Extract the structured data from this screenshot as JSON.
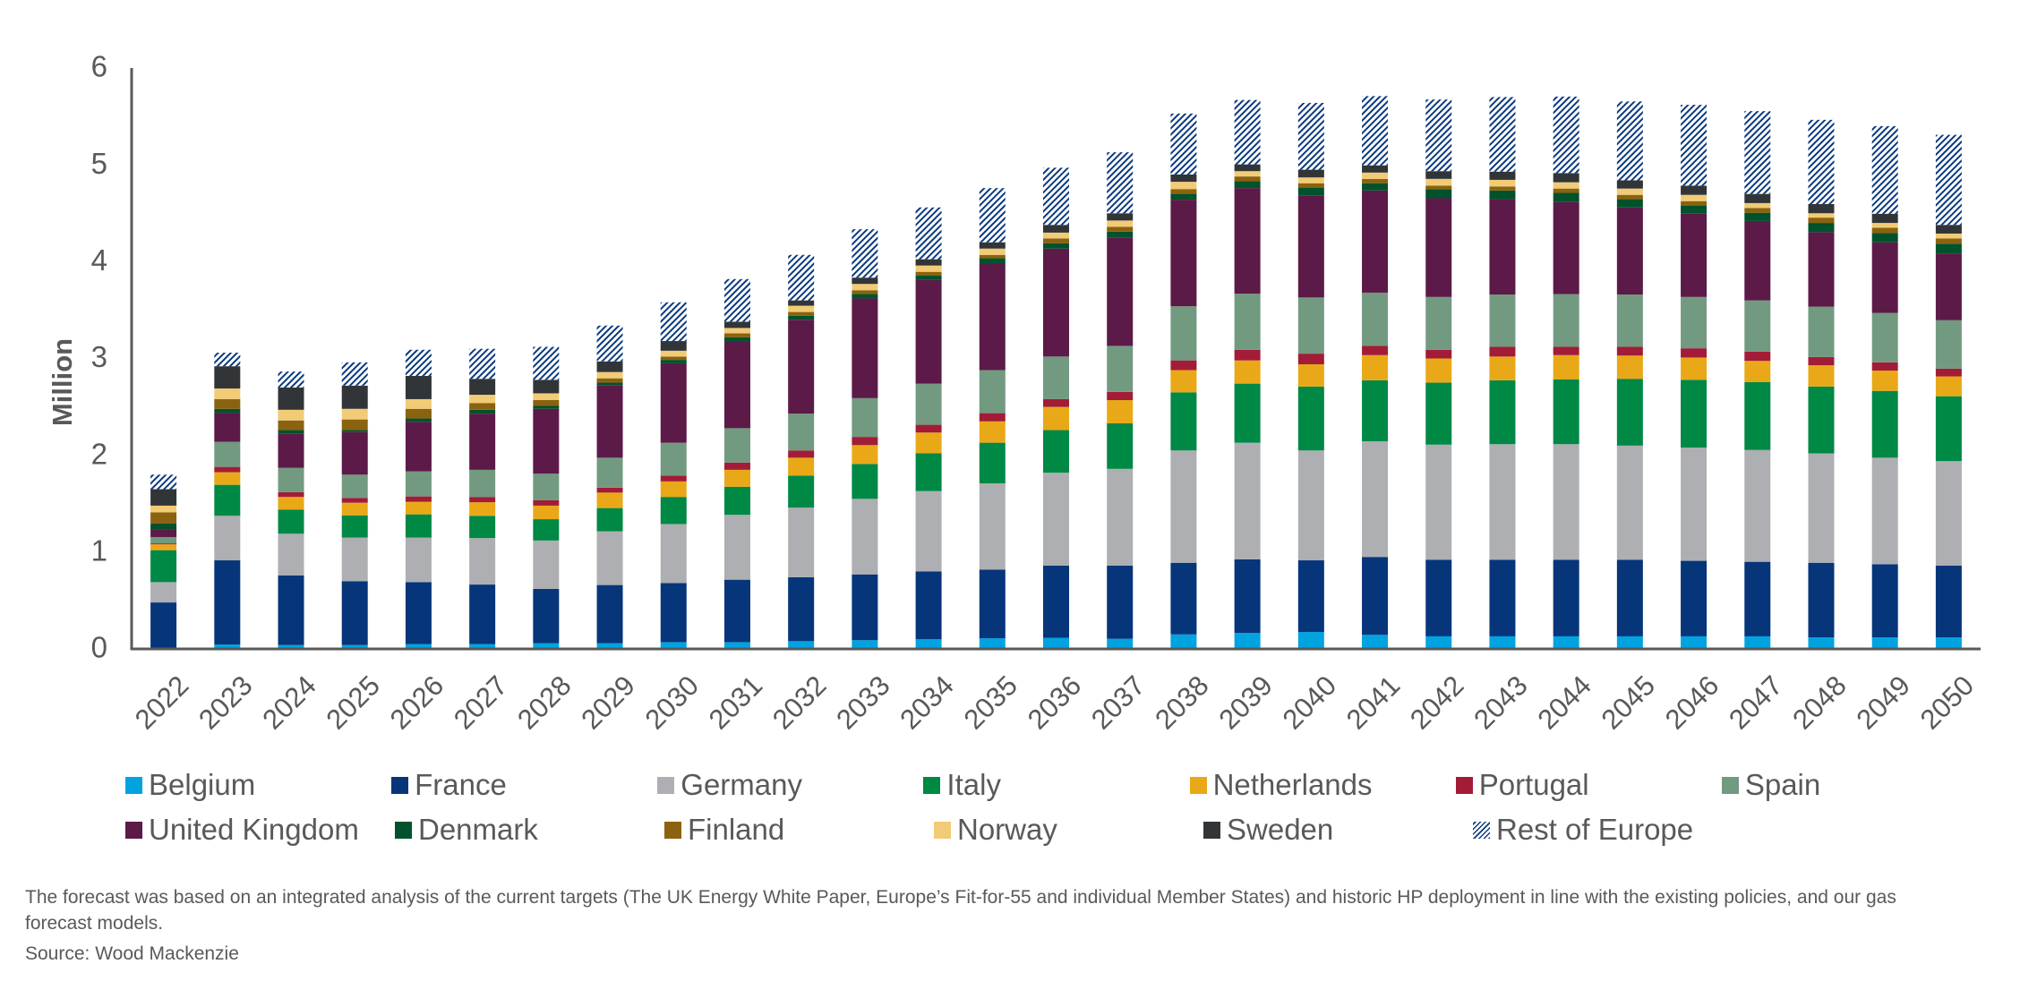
{
  "chart_data": {
    "type": "bar",
    "stacked": true,
    "title": "",
    "xlabel": "",
    "ylabel": "Million",
    "ylim": [
      0,
      6
    ],
    "yticks": [
      "0",
      "1",
      "2",
      "3",
      "4",
      "5",
      "6"
    ],
    "grid": false,
    "legend_position": "bottom",
    "categories": [
      "2022",
      "2023",
      "2024",
      "2025",
      "2026",
      "2027",
      "2028",
      "2029",
      "2030",
      "2031",
      "2032",
      "2033",
      "2034",
      "2035",
      "2036",
      "2037",
      "2038",
      "2039",
      "2040",
      "2041",
      "2042",
      "2043",
      "2044",
      "2045",
      "2046",
      "2047",
      "2048",
      "2049",
      "2050"
    ],
    "series": [
      {
        "name": "Belgium",
        "color": "#00A3E0",
        "pattern": "solid",
        "values": [
          0.01,
          0.045,
          0.04,
          0.04,
          0.05,
          0.05,
          0.06,
          0.06,
          0.07,
          0.07,
          0.08,
          0.09,
          0.1,
          0.11,
          0.115,
          0.105,
          0.15,
          0.165,
          0.175,
          0.145,
          0.13,
          0.13,
          0.13,
          0.13,
          0.13,
          0.13,
          0.12,
          0.12,
          0.12
        ]
      },
      {
        "name": "France",
        "color": "#06357A",
        "pattern": "solid",
        "values": [
          0.47,
          0.87,
          0.72,
          0.66,
          0.64,
          0.615,
          0.56,
          0.6,
          0.61,
          0.645,
          0.66,
          0.68,
          0.7,
          0.71,
          0.745,
          0.755,
          0.74,
          0.76,
          0.74,
          0.805,
          0.79,
          0.79,
          0.79,
          0.79,
          0.78,
          0.77,
          0.77,
          0.755,
          0.74
        ]
      },
      {
        "name": "Germany",
        "color": "#AEAFB2",
        "pattern": "solid",
        "values": [
          0.21,
          0.46,
          0.43,
          0.45,
          0.46,
          0.48,
          0.5,
          0.555,
          0.61,
          0.67,
          0.72,
          0.78,
          0.83,
          0.89,
          0.96,
          1.0,
          1.16,
          1.205,
          1.135,
          1.195,
          1.19,
          1.195,
          1.195,
          1.18,
          1.17,
          1.155,
          1.13,
          1.1,
          1.08
        ]
      },
      {
        "name": "Italy",
        "color": "#008845",
        "pattern": "solid",
        "values": [
          0.33,
          0.32,
          0.25,
          0.23,
          0.24,
          0.23,
          0.22,
          0.24,
          0.28,
          0.29,
          0.33,
          0.36,
          0.39,
          0.42,
          0.44,
          0.47,
          0.6,
          0.61,
          0.66,
          0.63,
          0.64,
          0.66,
          0.67,
          0.69,
          0.7,
          0.7,
          0.69,
          0.69,
          0.67
        ]
      },
      {
        "name": "Netherlands",
        "color": "#E9A817",
        "pattern": "solid",
        "values": [
          0.06,
          0.13,
          0.13,
          0.13,
          0.13,
          0.14,
          0.14,
          0.16,
          0.16,
          0.175,
          0.185,
          0.195,
          0.215,
          0.22,
          0.24,
          0.24,
          0.23,
          0.24,
          0.23,
          0.26,
          0.25,
          0.245,
          0.25,
          0.24,
          0.23,
          0.22,
          0.22,
          0.21,
          0.205
        ]
      },
      {
        "name": "Portugal",
        "color": "#A21C37",
        "pattern": "solid",
        "values": [
          0.01,
          0.055,
          0.05,
          0.05,
          0.055,
          0.055,
          0.055,
          0.05,
          0.06,
          0.075,
          0.075,
          0.085,
          0.08,
          0.085,
          0.08,
          0.085,
          0.1,
          0.11,
          0.11,
          0.095,
          0.09,
          0.1,
          0.085,
          0.09,
          0.095,
          0.095,
          0.085,
          0.085,
          0.08
        ]
      },
      {
        "name": "Spain",
        "color": "#729A80",
        "pattern": "solid",
        "values": [
          0.065,
          0.26,
          0.25,
          0.24,
          0.26,
          0.28,
          0.275,
          0.31,
          0.34,
          0.355,
          0.38,
          0.4,
          0.425,
          0.445,
          0.44,
          0.475,
          0.56,
          0.58,
          0.58,
          0.55,
          0.545,
          0.54,
          0.545,
          0.54,
          0.53,
          0.53,
          0.52,
          0.51,
          0.5
        ]
      },
      {
        "name": "United Kingdom",
        "color": "#5C1A48",
        "pattern": "solid",
        "values": [
          0.075,
          0.3,
          0.35,
          0.44,
          0.51,
          0.58,
          0.67,
          0.75,
          0.82,
          0.9,
          0.97,
          1.03,
          1.07,
          1.1,
          1.115,
          1.12,
          1.1,
          1.09,
          1.05,
          1.055,
          1.02,
          0.985,
          0.95,
          0.9,
          0.865,
          0.82,
          0.77,
          0.73,
          0.69
        ]
      },
      {
        "name": "Denmark",
        "color": "#00522C",
        "pattern": "solid",
        "values": [
          0.065,
          0.04,
          0.04,
          0.02,
          0.035,
          0.04,
          0.03,
          0.025,
          0.035,
          0.04,
          0.04,
          0.045,
          0.045,
          0.055,
          0.055,
          0.06,
          0.06,
          0.07,
          0.085,
          0.075,
          0.095,
          0.09,
          0.095,
          0.085,
          0.08,
          0.085,
          0.095,
          0.095,
          0.1
        ]
      },
      {
        "name": "Finland",
        "color": "#8B620F",
        "pattern": "solid",
        "values": [
          0.115,
          0.1,
          0.1,
          0.11,
          0.1,
          0.07,
          0.06,
          0.045,
          0.035,
          0.04,
          0.04,
          0.04,
          0.04,
          0.035,
          0.05,
          0.05,
          0.05,
          0.05,
          0.045,
          0.045,
          0.035,
          0.04,
          0.045,
          0.045,
          0.045,
          0.05,
          0.055,
          0.055,
          0.055
        ]
      },
      {
        "name": "Norway",
        "color": "#F2CB76",
        "pattern": "solid",
        "values": [
          0.07,
          0.11,
          0.11,
          0.11,
          0.1,
          0.085,
          0.07,
          0.065,
          0.06,
          0.055,
          0.065,
          0.065,
          0.065,
          0.065,
          0.06,
          0.065,
          0.075,
          0.055,
          0.06,
          0.065,
          0.07,
          0.07,
          0.065,
          0.065,
          0.065,
          0.05,
          0.045,
          0.05,
          0.05
        ]
      },
      {
        "name": "Sweden",
        "color": "#323537",
        "pattern": "solid",
        "values": [
          0.17,
          0.23,
          0.23,
          0.24,
          0.24,
          0.165,
          0.14,
          0.11,
          0.1,
          0.065,
          0.055,
          0.065,
          0.065,
          0.065,
          0.08,
          0.075,
          0.075,
          0.07,
          0.08,
          0.075,
          0.08,
          0.085,
          0.095,
          0.085,
          0.095,
          0.095,
          0.095,
          0.095,
          0.09
        ]
      },
      {
        "name": "Rest of Europe",
        "color": "#0B3A7E",
        "pattern": "hatch",
        "values": [
          0.15,
          0.14,
          0.165,
          0.24,
          0.27,
          0.31,
          0.34,
          0.37,
          0.4,
          0.44,
          0.47,
          0.5,
          0.535,
          0.56,
          0.59,
          0.63,
          0.63,
          0.665,
          0.69,
          0.715,
          0.74,
          0.77,
          0.79,
          0.815,
          0.835,
          0.855,
          0.87,
          0.905,
          0.93
        ]
      }
    ]
  },
  "legend": {
    "rows": [
      [
        "Belgium",
        "France",
        "Germany",
        "Italy",
        "Netherlands",
        "Portugal",
        "Spain"
      ],
      [
        "United Kingdom",
        "Denmark",
        "Finland",
        "Norway",
        "Sweden",
        "Rest of Europe"
      ]
    ]
  },
  "notes": {
    "footnote": "The forecast was based on an integrated analysis of the current targets (The UK Energy White Paper, Europe’s Fit-for-55 and individual Member States) and historic HP deployment in line with the existing policies, and our gas forecast models.",
    "source": "Source: Wood Mackenzie"
  },
  "colors": {
    "text": "#595959",
    "axis": "#595959"
  }
}
